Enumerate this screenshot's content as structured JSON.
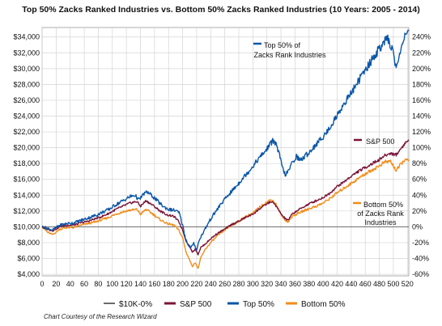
{
  "chart_data": {
    "type": "line",
    "title": "Top 50% Zacks Ranked Industries vs. Bottom 50% Zacks Ranked Industries (10 Years: 2005 - 2014)",
    "x_ticks": [
      0,
      20,
      40,
      60,
      80,
      100,
      120,
      140,
      160,
      180,
      200,
      220,
      240,
      260,
      280,
      300,
      320,
      340,
      360,
      380,
      400,
      420,
      440,
      460,
      480,
      500,
      520
    ],
    "y_left_ticks": [
      "$4,000",
      "$6,000",
      "$8,000",
      "$10,000",
      "$12,000",
      "$14,000",
      "$16,000",
      "$18,000",
      "$20,000",
      "$22,000",
      "$24,000",
      "$26,000",
      "$28,000",
      "$30,000",
      "$32,000",
      "$34,000"
    ],
    "y_right_ticks": [
      "-60%",
      "-40%",
      "-20%",
      "0%",
      "20%",
      "40%",
      "60%",
      "80%",
      "100%",
      "120%",
      "140%",
      "160%",
      "180%",
      "200%",
      "220%",
      "240%"
    ],
    "xlim": [
      0,
      522
    ],
    "ylim": [
      3800,
      35200
    ],
    "grid": true,
    "legend_position": "bottom",
    "colors": {
      "baseline": "#6b6b6b",
      "sp500": "#7a1438",
      "top50": "#0a56a8",
      "bottom50": "#f28c1a",
      "grid": "#d4d4d4"
    },
    "series": [
      {
        "name": "$10K-0%",
        "key": "baseline",
        "points": [
          [
            0,
            10000
          ],
          [
            522,
            10000
          ]
        ]
      },
      {
        "name": "S&P 500",
        "key": "sp500",
        "points": [
          [
            0,
            10000
          ],
          [
            8,
            9700
          ],
          [
            15,
            9500
          ],
          [
            25,
            10000
          ],
          [
            35,
            10200
          ],
          [
            45,
            10200
          ],
          [
            55,
            10500
          ],
          [
            65,
            10700
          ],
          [
            75,
            11000
          ],
          [
            85,
            11300
          ],
          [
            95,
            11700
          ],
          [
            105,
            12200
          ],
          [
            115,
            12600
          ],
          [
            125,
            13000
          ],
          [
            135,
            13200
          ],
          [
            140,
            12600
          ],
          [
            148,
            13300
          ],
          [
            158,
            12700
          ],
          [
            168,
            12000
          ],
          [
            178,
            11500
          ],
          [
            188,
            11300
          ],
          [
            195,
            10600
          ],
          [
            200,
            9600
          ],
          [
            205,
            8200
          ],
          [
            210,
            7500
          ],
          [
            214,
            6800
          ],
          [
            218,
            7200
          ],
          [
            222,
            6500
          ],
          [
            226,
            7400
          ],
          [
            232,
            7800
          ],
          [
            240,
            8500
          ],
          [
            250,
            9200
          ],
          [
            260,
            9700
          ],
          [
            270,
            10300
          ],
          [
            280,
            10700
          ],
          [
            290,
            11200
          ],
          [
            300,
            11600
          ],
          [
            310,
            12300
          ],
          [
            320,
            12900
          ],
          [
            326,
            13200
          ],
          [
            332,
            12800
          ],
          [
            338,
            11900
          ],
          [
            344,
            11200
          ],
          [
            350,
            10800
          ],
          [
            356,
            11600
          ],
          [
            364,
            12100
          ],
          [
            372,
            12500
          ],
          [
            380,
            12900
          ],
          [
            390,
            13300
          ],
          [
            400,
            13700
          ],
          [
            410,
            14300
          ],
          [
            420,
            15100
          ],
          [
            430,
            15700
          ],
          [
            440,
            16400
          ],
          [
            450,
            17000
          ],
          [
            460,
            17500
          ],
          [
            470,
            18000
          ],
          [
            480,
            18500
          ],
          [
            488,
            19000
          ],
          [
            496,
            19300
          ],
          [
            504,
            19100
          ],
          [
            510,
            19800
          ],
          [
            516,
            20500
          ],
          [
            522,
            21000
          ]
        ]
      },
      {
        "name": "Top 50%",
        "key": "top50",
        "points": [
          [
            0,
            10000
          ],
          [
            8,
            9800
          ],
          [
            15,
            9600
          ],
          [
            25,
            10200
          ],
          [
            35,
            10400
          ],
          [
            45,
            10500
          ],
          [
            55,
            10800
          ],
          [
            65,
            11100
          ],
          [
            75,
            11400
          ],
          [
            85,
            11800
          ],
          [
            95,
            12200
          ],
          [
            105,
            12800
          ],
          [
            115,
            13300
          ],
          [
            125,
            13800
          ],
          [
            132,
            14000
          ],
          [
            138,
            13400
          ],
          [
            145,
            14200
          ],
          [
            150,
            14400
          ],
          [
            158,
            13800
          ],
          [
            165,
            13200
          ],
          [
            172,
            12600
          ],
          [
            180,
            12200
          ],
          [
            188,
            12100
          ],
          [
            195,
            11800
          ],
          [
            200,
            10200
          ],
          [
            204,
            8600
          ],
          [
            208,
            7700
          ],
          [
            212,
            7400
          ],
          [
            216,
            7900
          ],
          [
            220,
            7100
          ],
          [
            224,
            8400
          ],
          [
            230,
            9400
          ],
          [
            238,
            10700
          ],
          [
            246,
            11800
          ],
          [
            254,
            12800
          ],
          [
            262,
            13700
          ],
          [
            270,
            14500
          ],
          [
            278,
            15300
          ],
          [
            286,
            16200
          ],
          [
            294,
            17000
          ],
          [
            302,
            17900
          ],
          [
            310,
            18800
          ],
          [
            318,
            19600
          ],
          [
            324,
            20400
          ],
          [
            330,
            21000
          ],
          [
            334,
            20200
          ],
          [
            338,
            19000
          ],
          [
            342,
            17500
          ],
          [
            346,
            16600
          ],
          [
            350,
            16900
          ],
          [
            356,
            18100
          ],
          [
            362,
            18900
          ],
          [
            368,
            18400
          ],
          [
            374,
            18900
          ],
          [
            380,
            19400
          ],
          [
            388,
            20200
          ],
          [
            396,
            21000
          ],
          [
            404,
            21800
          ],
          [
            412,
            22900
          ],
          [
            420,
            24100
          ],
          [
            428,
            25300
          ],
          [
            436,
            26400
          ],
          [
            444,
            27500
          ],
          [
            452,
            28700
          ],
          [
            460,
            29800
          ],
          [
            468,
            30900
          ],
          [
            476,
            32000
          ],
          [
            484,
            33000
          ],
          [
            492,
            33800
          ],
          [
            498,
            32600
          ],
          [
            504,
            30200
          ],
          [
            508,
            31200
          ],
          [
            514,
            33800
          ],
          [
            518,
            34600
          ],
          [
            522,
            34900
          ]
        ]
      },
      {
        "name": "Bottom 50%",
        "key": "bottom50",
        "points": [
          [
            0,
            10000
          ],
          [
            8,
            9300
          ],
          [
            15,
            9000
          ],
          [
            25,
            9700
          ],
          [
            35,
            9900
          ],
          [
            45,
            9900
          ],
          [
            55,
            10200
          ],
          [
            65,
            10400
          ],
          [
            75,
            10600
          ],
          [
            85,
            10900
          ],
          [
            95,
            11200
          ],
          [
            105,
            11600
          ],
          [
            115,
            11900
          ],
          [
            125,
            12100
          ],
          [
            135,
            12200
          ],
          [
            140,
            11600
          ],
          [
            148,
            12200
          ],
          [
            158,
            11600
          ],
          [
            168,
            10900
          ],
          [
            178,
            10400
          ],
          [
            188,
            10200
          ],
          [
            195,
            9500
          ],
          [
            200,
            8600
          ],
          [
            205,
            6800
          ],
          [
            210,
            5800
          ],
          [
            214,
            5000
          ],
          [
            218,
            5500
          ],
          [
            222,
            4700
          ],
          [
            226,
            6100
          ],
          [
            232,
            7100
          ],
          [
            240,
            8000
          ],
          [
            250,
            8900
          ],
          [
            260,
            9600
          ],
          [
            270,
            10200
          ],
          [
            280,
            10700
          ],
          [
            290,
            11300
          ],
          [
            300,
            11700
          ],
          [
            310,
            12500
          ],
          [
            320,
            13100
          ],
          [
            326,
            13500
          ],
          [
            332,
            13000
          ],
          [
            338,
            11900
          ],
          [
            344,
            11000
          ],
          [
            350,
            10600
          ],
          [
            356,
            11300
          ],
          [
            364,
            11700
          ],
          [
            372,
            12000
          ],
          [
            380,
            12300
          ],
          [
            390,
            12600
          ],
          [
            400,
            13000
          ],
          [
            410,
            13600
          ],
          [
            420,
            14300
          ],
          [
            430,
            14900
          ],
          [
            440,
            15500
          ],
          [
            450,
            16100
          ],
          [
            460,
            16700
          ],
          [
            470,
            17200
          ],
          [
            480,
            17700
          ],
          [
            488,
            18200
          ],
          [
            496,
            18300
          ],
          [
            504,
            17100
          ],
          [
            510,
            17800
          ],
          [
            516,
            18500
          ],
          [
            522,
            18300
          ]
        ]
      }
    ],
    "annotations": [
      {
        "key": "top50",
        "lines": [
          "Top 50% of",
          "Zacks Rank  Industries"
        ]
      },
      {
        "key": "sp500",
        "lines": [
          "S&P 500"
        ]
      },
      {
        "key": "bottom50",
        "lines": [
          "Bottom 50%",
          "of Zacks Rank",
          "Industries"
        ]
      }
    ]
  },
  "credit": "Chart Courtesy of the Research Wizard"
}
